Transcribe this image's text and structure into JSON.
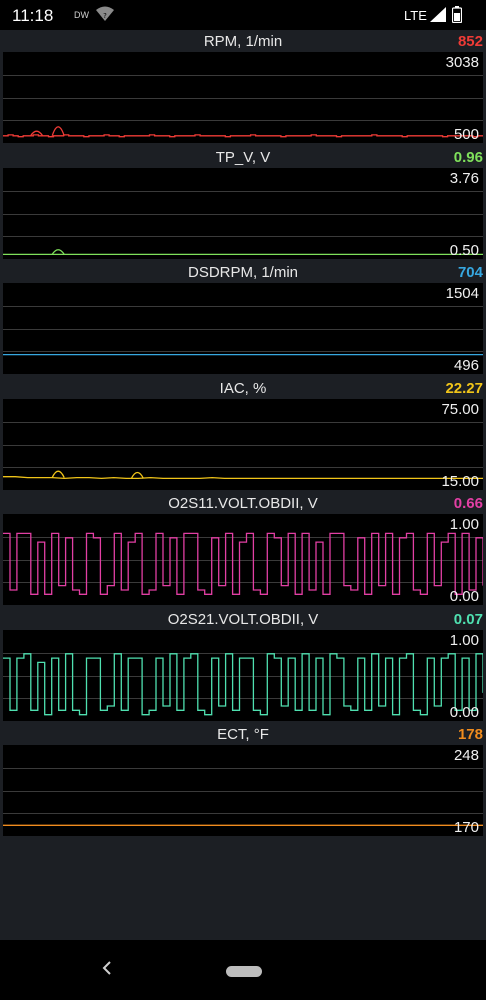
{
  "status_bar": {
    "time": "11:18",
    "dw_label": "DW",
    "network": "LTE",
    "icons": [
      "wifi-question-icon",
      "signal-icon",
      "battery-icon"
    ]
  },
  "panels": [
    {
      "title": "RPM, 1/min",
      "value": "852",
      "max": "3038",
      "min": "500",
      "color": "#ef3b36",
      "series": [
        0.06,
        0.07,
        0.06,
        0.05,
        0.06,
        0.06,
        0.07,
        0.06,
        0.06,
        0.05,
        0.06,
        0.06,
        0.07,
        0.06,
        0.06,
        0.06,
        0.05,
        0.06,
        0.06,
        0.06,
        0.07,
        0.06,
        0.06,
        0.05,
        0.06,
        0.06,
        0.06,
        0.06,
        0.06,
        0.07,
        0.06,
        0.06,
        0.06,
        0.05,
        0.06,
        0.06,
        0.06,
        0.06,
        0.07,
        0.06,
        0.06,
        0.06,
        0.06,
        0.06,
        0.05,
        0.06,
        0.06,
        0.06,
        0.06,
        0.07,
        0.06,
        0.06,
        0.06,
        0.06,
        0.06,
        0.05,
        0.06,
        0.06,
        0.06,
        0.06,
        0.06,
        0.07,
        0.06,
        0.06,
        0.06,
        0.06,
        0.05,
        0.06,
        0.06,
        0.06,
        0.06,
        0.06,
        0.06,
        0.07,
        0.06,
        0.06,
        0.06,
        0.06,
        0.06,
        0.05,
        0.06,
        0.06,
        0.06,
        0.06,
        0.06,
        0.06,
        0.06,
        0.05,
        0.06,
        0.06,
        0.06,
        0.06,
        0.06,
        0.05,
        0.06,
        0.06
      ],
      "spikes": [
        {
          "at": 0.07,
          "level": 0.12
        },
        {
          "at": 0.115,
          "level": 0.22
        }
      ]
    },
    {
      "title": "TP_V, V",
      "value": "0.96",
      "max": "3.76",
      "min": "0.50",
      "color": "#7fe05b",
      "series": [
        0.03,
        0.03,
        0.03,
        0.03,
        0.03,
        0.03,
        0.03,
        0.03,
        0.03,
        0.03,
        0.03,
        0.03,
        0.03,
        0.03,
        0.03,
        0.03,
        0.03,
        0.03,
        0.03,
        0.03,
        0.03,
        0.03,
        0.03,
        0.03,
        0.03,
        0.03,
        0.03,
        0.03,
        0.03,
        0.03,
        0.03,
        0.03,
        0.03,
        0.03,
        0.03,
        0.03,
        0.03,
        0.03,
        0.03,
        0.03
      ],
      "spikes": [
        {
          "at": 0.115,
          "level": 0.09
        }
      ]
    },
    {
      "title": "DSDRPM, 1/min",
      "value": "704",
      "max": "1504",
      "min": "496",
      "color": "#36a7e0",
      "series": [
        0.2,
        0.2,
        0.2,
        0.2,
        0.2,
        0.2,
        0.2,
        0.2,
        0.2,
        0.2,
        0.2,
        0.2,
        0.2,
        0.2,
        0.2,
        0.2,
        0.2,
        0.2,
        0.2,
        0.2
      ],
      "spikes": []
    },
    {
      "title": "IAC, %",
      "value": "22.27",
      "max": "75.00",
      "min": "15.00",
      "color": "#f0c419",
      "series": [
        0.13,
        0.13,
        0.12,
        0.12,
        0.12,
        0.11,
        0.12,
        0.12,
        0.11,
        0.12,
        0.11,
        0.11,
        0.12,
        0.11,
        0.11,
        0.11,
        0.11,
        0.12,
        0.11,
        0.11,
        0.11,
        0.11,
        0.11,
        0.11,
        0.11,
        0.11,
        0.11,
        0.11,
        0.11,
        0.11,
        0.11,
        0.11,
        0.11,
        0.11,
        0.11,
        0.11,
        0.11,
        0.11,
        0.11,
        0.11
      ],
      "spikes": [
        {
          "at": 0.115,
          "level": 0.22
        },
        {
          "at": 0.28,
          "level": 0.2
        }
      ]
    },
    {
      "title": "O2S11.VOLT.OBDII, V",
      "value": "0.66",
      "max": "1.00",
      "min": "0.00",
      "color": "#e23fa4",
      "series": [
        0.8,
        0.15,
        0.8,
        0.8,
        0.1,
        0.7,
        0.1,
        0.8,
        0.2,
        0.75,
        0.15,
        0.1,
        0.8,
        0.75,
        0.1,
        0.2,
        0.8,
        0.15,
        0.7,
        0.8,
        0.1,
        0.15,
        0.8,
        0.2,
        0.75,
        0.1,
        0.8,
        0.8,
        0.15,
        0.1,
        0.75,
        0.2,
        0.8,
        0.1,
        0.7,
        0.8,
        0.15,
        0.1,
        0.8,
        0.75,
        0.2,
        0.8,
        0.1,
        0.8,
        0.15,
        0.7,
        0.1,
        0.8,
        0.8,
        0.2,
        0.15,
        0.75,
        0.1,
        0.8,
        0.2,
        0.8,
        0.1,
        0.75,
        0.8,
        0.15,
        0.1,
        0.8,
        0.2,
        0.7,
        0.8,
        0.1,
        0.8,
        0.15,
        0.75,
        0.2
      ],
      "spikes": []
    },
    {
      "title": "O2S21.VOLT.OBDII, V",
      "value": "0.07",
      "max": "1.00",
      "min": "0.00",
      "color": "#4fe0b0",
      "series": [
        0.7,
        0.1,
        0.7,
        0.75,
        0.1,
        0.65,
        0.05,
        0.7,
        0.1,
        0.75,
        0.1,
        0.05,
        0.7,
        0.7,
        0.1,
        0.15,
        0.75,
        0.1,
        0.7,
        0.7,
        0.05,
        0.1,
        0.7,
        0.15,
        0.75,
        0.1,
        0.7,
        0.75,
        0.1,
        0.05,
        0.7,
        0.15,
        0.75,
        0.1,
        0.7,
        0.7,
        0.1,
        0.05,
        0.75,
        0.7,
        0.15,
        0.7,
        0.1,
        0.75,
        0.1,
        0.7,
        0.05,
        0.75,
        0.7,
        0.15,
        0.1,
        0.7,
        0.1,
        0.75,
        0.15,
        0.7,
        0.05,
        0.7,
        0.75,
        0.1,
        0.05,
        0.7,
        0.15,
        0.7,
        0.75,
        0.1,
        0.7,
        0.1,
        0.75,
        0.3
      ],
      "spikes": []
    },
    {
      "title": "ECT, °F",
      "value": "178",
      "max": "248",
      "min": "170",
      "color": "#f08c1e",
      "series": [
        0.1,
        0.1,
        0.1,
        0.1,
        0.1,
        0.1,
        0.1,
        0.1,
        0.1,
        0.1,
        0.1,
        0.1,
        0.1,
        0.1,
        0.1,
        0.1,
        0.1,
        0.1,
        0.1,
        0.1
      ],
      "spikes": []
    }
  ],
  "nav": {
    "icons": [
      "back-icon",
      "home-pill-icon"
    ]
  }
}
